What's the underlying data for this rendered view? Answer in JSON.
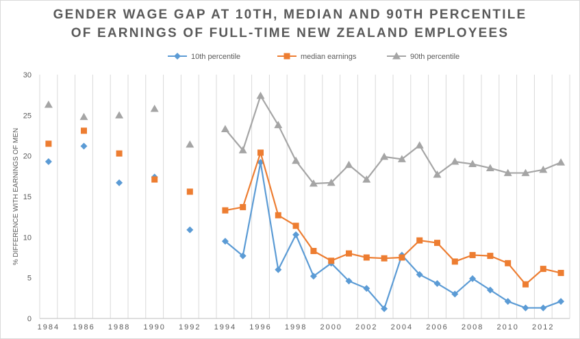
{
  "chart_data": {
    "type": "line",
    "title_lines": [
      "GENDER WAGE GAP AT 10TH, MEDIAN AND 90TH PERCENTILE",
      "OF EARNINGS OF FULL-TIME NEW ZEALAND EMPLOYEES"
    ],
    "xlabel": "",
    "ylabel": "% DIFFERENCE WITH EARNINGS OF MEN",
    "ylim": [
      0,
      30
    ],
    "yticks": [
      0,
      5,
      10,
      15,
      20,
      25,
      30
    ],
    "x": [
      1984,
      1985,
      1986,
      1987,
      1988,
      1989,
      1990,
      1991,
      1992,
      1993,
      1994,
      1995,
      1996,
      1997,
      1998,
      1999,
      2000,
      2001,
      2002,
      2003,
      2004,
      2005,
      2006,
      2007,
      2008,
      2009,
      2010,
      2011,
      2012,
      2013
    ],
    "xtick_labels": [
      "1984",
      "1986",
      "1988",
      "1990",
      "1992",
      "1994",
      "1996",
      "1998",
      "2000",
      "2002",
      "2004",
      "2006",
      "2008",
      "2010",
      "2012"
    ],
    "grid": "vertical",
    "legend_position": "top",
    "series": [
      {
        "name": "10th percentile",
        "color": "#5B9BD5",
        "marker": "diamond",
        "values": [
          19.3,
          null,
          21.2,
          null,
          16.7,
          null,
          17.4,
          null,
          10.9,
          null,
          9.5,
          7.7,
          19.2,
          6.0,
          10.3,
          5.2,
          6.8,
          4.6,
          3.7,
          1.2,
          7.8,
          5.4,
          4.3,
          3.0,
          4.9,
          3.5,
          2.1,
          1.3,
          1.3,
          2.1
        ]
      },
      {
        "name": "median earnings",
        "color": "#ED7D31",
        "marker": "square",
        "values": [
          21.5,
          null,
          23.1,
          null,
          20.3,
          null,
          17.1,
          null,
          15.6,
          null,
          13.3,
          13.7,
          20.4,
          12.7,
          11.4,
          8.3,
          7.1,
          8.0,
          7.5,
          7.4,
          7.5,
          9.6,
          9.3,
          7.0,
          7.8,
          7.7,
          6.8,
          4.2,
          6.1,
          5.6
        ]
      },
      {
        "name": "90th percentile",
        "color": "#A5A5A5",
        "marker": "triangle",
        "values": [
          26.3,
          null,
          24.8,
          null,
          25.0,
          null,
          25.8,
          null,
          21.4,
          null,
          23.3,
          20.7,
          27.4,
          23.8,
          19.4,
          16.6,
          16.7,
          18.9,
          17.1,
          19.9,
          19.6,
          21.3,
          17.7,
          19.3,
          19.0,
          18.5,
          17.9,
          17.9,
          18.3,
          19.2
        ]
      }
    ]
  }
}
